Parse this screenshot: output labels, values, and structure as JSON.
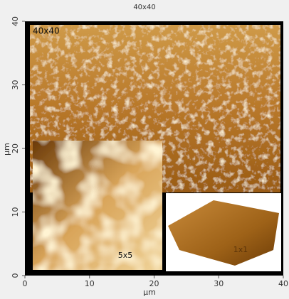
{
  "chart_data": {
    "type": "image",
    "title": "40x40",
    "xlabel": "µm",
    "ylabel": "µm",
    "xlim": [
      0,
      40
    ],
    "ylim": [
      0,
      40
    ],
    "xticks": [
      0,
      10,
      20,
      30,
      40
    ],
    "yticks": [
      0,
      10,
      20,
      30,
      40
    ],
    "annotations": [
      "40x40",
      "5x5",
      "1x1"
    ]
  }
}
